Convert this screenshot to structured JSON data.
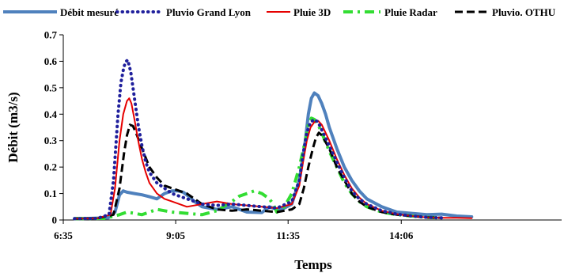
{
  "chart_data": {
    "type": "line",
    "xlabel": "Temps",
    "ylabel": "Débit (m3/s)",
    "xlim": [
      395,
      1060
    ],
    "ylim": [
      0,
      0.7
    ],
    "y_ticks": [
      0,
      0.1,
      0.2,
      0.3,
      0.4,
      0.5,
      0.6,
      0.7
    ],
    "y_tick_labels": [
      "0",
      "0.1",
      "0.2",
      "0.3",
      "0.4",
      "0.5",
      "0.6",
      "0.7"
    ],
    "x_ticks": [
      395,
      545,
      695,
      846
    ],
    "x_tick_labels": [
      "6:35",
      "9:05",
      "11:35",
      "14:06"
    ],
    "grid": false,
    "legend_position": "top",
    "colors": {
      "debit": "#4f81bd",
      "grand_lyon": "#1f1f9c",
      "pluie3d": "#e60000",
      "radar": "#33dd33",
      "othu": "#000000"
    },
    "series": [
      {
        "name": "Débit mesuré",
        "style": "solid-thick",
        "x": [
          410,
          430,
          455,
          464,
          470,
          475,
          480,
          490,
          500,
          510,
          520,
          530,
          540,
          548,
          555,
          562,
          570,
          580,
          600,
          620,
          640,
          660,
          670,
          680,
          690,
          700,
          710,
          718,
          722,
          726,
          730,
          735,
          740,
          745,
          750,
          760,
          770,
          780,
          790,
          800,
          820,
          840,
          860,
          880,
          900,
          920,
          940
        ],
        "values": [
          0.005,
          0.006,
          0.008,
          0.03,
          0.095,
          0.11,
          0.105,
          0.1,
          0.095,
          0.088,
          0.08,
          0.1,
          0.11,
          0.11,
          0.105,
          0.09,
          0.07,
          0.05,
          0.04,
          0.05,
          0.03,
          0.028,
          0.05,
          0.04,
          0.045,
          0.06,
          0.15,
          0.3,
          0.4,
          0.46,
          0.48,
          0.47,
          0.44,
          0.4,
          0.35,
          0.27,
          0.2,
          0.15,
          0.11,
          0.08,
          0.05,
          0.03,
          0.025,
          0.02,
          0.022,
          0.015,
          0.012
        ]
      },
      {
        "name": "Pluvio Grand Lyon",
        "style": "dotted",
        "x": [
          410,
          440,
          456,
          462,
          468,
          472,
          476,
          479,
          481,
          485,
          490,
          495,
          500,
          505,
          510,
          520,
          530,
          540,
          560,
          580,
          600,
          620,
          640,
          660,
          680,
          700,
          710,
          715,
          720,
          725,
          730,
          735,
          740,
          750,
          760,
          770,
          780,
          790,
          800,
          820,
          840,
          860,
          880,
          900
        ],
        "values": [
          0.005,
          0.006,
          0.02,
          0.15,
          0.4,
          0.52,
          0.58,
          0.6,
          0.605,
          0.56,
          0.46,
          0.36,
          0.28,
          0.22,
          0.18,
          0.14,
          0.12,
          0.1,
          0.08,
          0.06,
          0.055,
          0.06,
          0.055,
          0.05,
          0.045,
          0.07,
          0.15,
          0.25,
          0.33,
          0.37,
          0.38,
          0.37,
          0.34,
          0.28,
          0.22,
          0.16,
          0.11,
          0.08,
          0.06,
          0.035,
          0.022,
          0.015,
          0.01,
          0.008
        ]
      },
      {
        "name": "Pluie 3D",
        "style": "solid",
        "x": [
          410,
          440,
          458,
          464,
          470,
          475,
          480,
          483,
          486,
          490,
          495,
          500,
          505,
          510,
          520,
          530,
          540,
          560,
          580,
          600,
          620,
          640,
          660,
          680,
          700,
          710,
          715,
          720,
          725,
          730,
          735,
          740,
          750,
          760,
          770,
          780,
          790,
          800,
          820,
          840,
          860,
          880,
          900,
          920,
          940
        ],
        "values": [
          0.005,
          0.006,
          0.02,
          0.12,
          0.3,
          0.4,
          0.45,
          0.46,
          0.44,
          0.38,
          0.3,
          0.23,
          0.18,
          0.14,
          0.1,
          0.08,
          0.07,
          0.05,
          0.06,
          0.07,
          0.06,
          0.055,
          0.05,
          0.045,
          0.06,
          0.13,
          0.22,
          0.3,
          0.35,
          0.37,
          0.375,
          0.36,
          0.3,
          0.23,
          0.17,
          0.12,
          0.085,
          0.06,
          0.035,
          0.022,
          0.015,
          0.01,
          0.008,
          0.008,
          0.007
        ]
      },
      {
        "name": "Pluie Radar",
        "style": "dash-dot",
        "x": [
          410,
          450,
          470,
          480,
          490,
          500,
          520,
          540,
          560,
          580,
          600,
          620,
          630,
          640,
          650,
          660,
          670,
          675,
          680,
          690,
          700,
          710,
          718,
          722,
          726,
          730,
          735,
          740,
          750,
          760,
          770,
          780,
          790,
          800,
          820,
          840,
          860,
          880,
          900
        ],
        "values": [
          0.005,
          0.006,
          0.02,
          0.03,
          0.025,
          0.02,
          0.04,
          0.03,
          0.025,
          0.02,
          0.035,
          0.07,
          0.09,
          0.1,
          0.11,
          0.1,
          0.08,
          0.06,
          0.03,
          0.05,
          0.1,
          0.2,
          0.3,
          0.36,
          0.385,
          0.38,
          0.36,
          0.33,
          0.26,
          0.2,
          0.14,
          0.1,
          0.07,
          0.05,
          0.03,
          0.02,
          0.015,
          0.01,
          0.008
        ]
      },
      {
        "name": "Pluvio. OTHU",
        "style": "dashed",
        "x": [
          410,
          440,
          462,
          470,
          476,
          480,
          484,
          488,
          492,
          500,
          510,
          520,
          530,
          540,
          560,
          580,
          600,
          620,
          640,
          660,
          680,
          700,
          710,
          716,
          722,
          728,
          732,
          736,
          740,
          750,
          760,
          770,
          780,
          790,
          800,
          820,
          840,
          860,
          880,
          900
        ],
        "values": [
          0.005,
          0.006,
          0.02,
          0.12,
          0.25,
          0.32,
          0.36,
          0.355,
          0.33,
          0.27,
          0.2,
          0.16,
          0.13,
          0.12,
          0.1,
          0.06,
          0.04,
          0.035,
          0.04,
          0.035,
          0.03,
          0.04,
          0.06,
          0.12,
          0.2,
          0.27,
          0.31,
          0.33,
          0.32,
          0.27,
          0.2,
          0.15,
          0.1,
          0.07,
          0.05,
          0.03,
          0.02,
          0.015,
          0.01,
          0.008
        ]
      }
    ]
  }
}
